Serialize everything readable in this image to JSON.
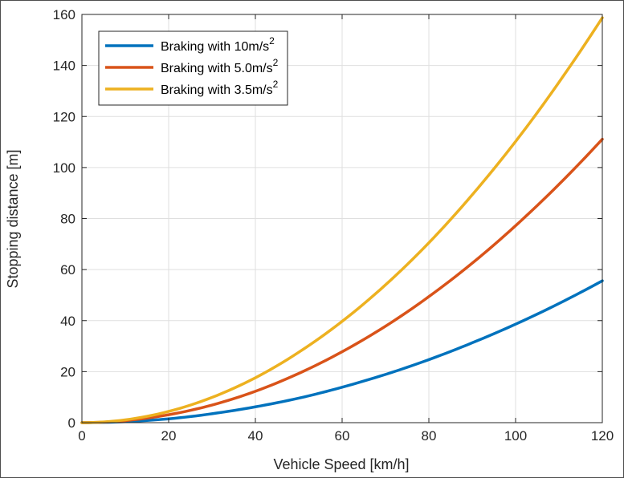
{
  "chart_data": {
    "type": "line",
    "xlabel": "Vehicle Speed [km/h]",
    "ylabel": "Stopping distance [m]",
    "xlim": [
      0,
      120
    ],
    "ylim": [
      0,
      160
    ],
    "xticks": [
      0,
      20,
      40,
      60,
      80,
      100,
      120
    ],
    "yticks": [
      0,
      20,
      40,
      60,
      80,
      100,
      120,
      140,
      160
    ],
    "xtick_labels": [
      "0",
      "20",
      "40",
      "60",
      "80",
      "100",
      "120"
    ],
    "ytick_labels": [
      "0",
      "20",
      "40",
      "60",
      "80",
      "100",
      "120",
      "140",
      "160"
    ],
    "grid": true,
    "legend_position": "top-left",
    "x": [
      0,
      10,
      20,
      30,
      40,
      50,
      60,
      70,
      80,
      90,
      100,
      110,
      120
    ],
    "series": [
      {
        "name": "Braking with 10m/s",
        "name_superscript": "2",
        "color": "#0072BD",
        "values": [
          0,
          0.4,
          1.5,
          3.5,
          6.2,
          9.6,
          13.9,
          18.9,
          24.7,
          31.3,
          38.6,
          46.7,
          55.6
        ]
      },
      {
        "name": "Braking with 5.0m/s",
        "name_superscript": "2",
        "color": "#D95319",
        "values": [
          0,
          0.8,
          3.1,
          6.9,
          12.3,
          19.3,
          27.8,
          37.8,
          49.4,
          62.5,
          77.2,
          93.4,
          111.1
        ]
      },
      {
        "name": "Braking with 3.5m/s",
        "name_superscript": "2",
        "color": "#EDB120",
        "values": [
          0,
          1.1,
          4.4,
          9.9,
          17.6,
          27.6,
          39.7,
          54.0,
          70.5,
          89.3,
          110.2,
          133.4,
          158.7
        ]
      }
    ]
  }
}
